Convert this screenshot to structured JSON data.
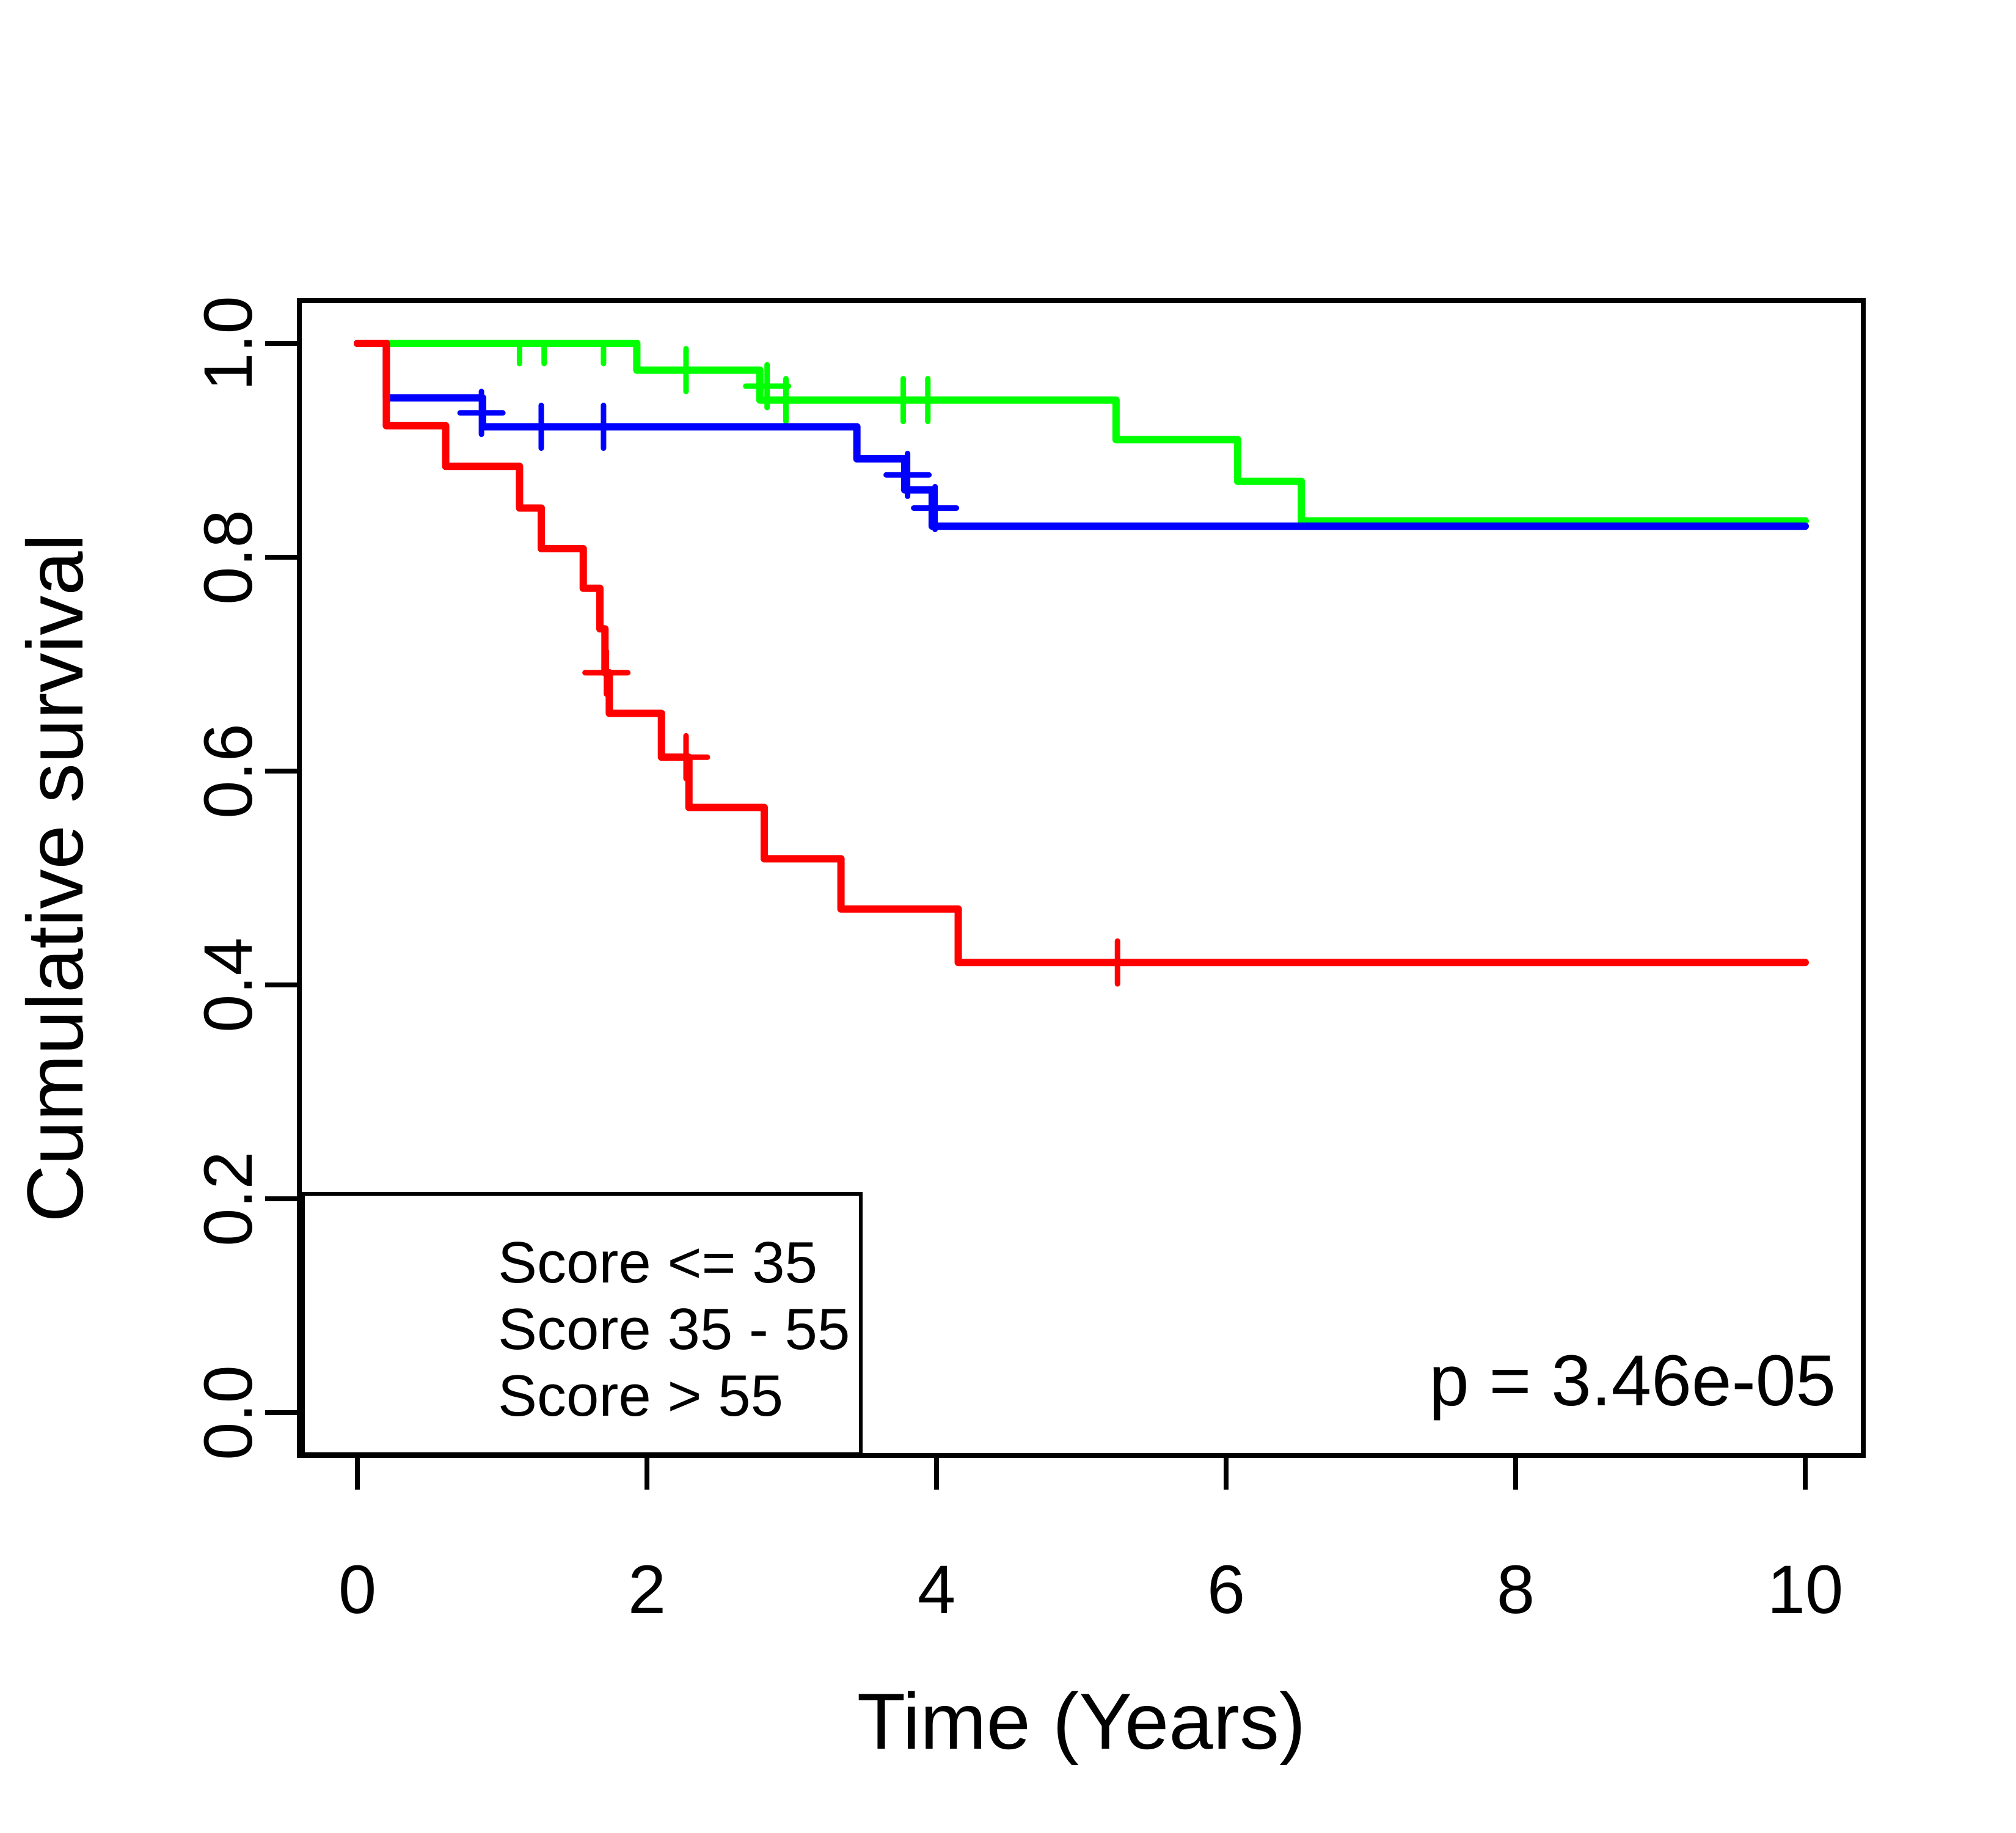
{
  "chart_data": {
    "type": "line",
    "subtype": "kaplan_meier_step_survival",
    "title": "",
    "xlabel": "Time (Years)",
    "ylabel": "Cumulative survival",
    "xlim": [
      0,
      10
    ],
    "ylim": [
      0.0,
      1.0
    ],
    "grid": false,
    "background_color": "#ffffff",
    "axis_color": "#000000",
    "xticks": [
      0,
      2,
      4,
      6,
      8,
      10
    ],
    "xtick_labels": [
      "0",
      "2",
      "4",
      "6",
      "8",
      "10"
    ],
    "yticks": [
      0.0,
      0.2,
      0.4,
      0.6,
      0.8,
      1.0
    ],
    "ytick_labels": [
      "0.0",
      "0.2",
      "0.4",
      "0.6",
      "0.8",
      "1.0"
    ],
    "p_value_text": "p = 3.46e-05",
    "legend": {
      "position": "bottom-left",
      "entries": [
        {
          "label": "Score <= 35",
          "color": "#00ff00"
        },
        {
          "label": "Score 35 - 55",
          "color": "#0000ff"
        },
        {
          "label": "Score > 55",
          "color": "#ff0000"
        }
      ]
    },
    "series": [
      {
        "name": "Score <= 35",
        "color": "#00ff00",
        "end_time": 10,
        "steps": [
          [
            0,
            1.0
          ],
          [
            1.93,
            0.975
          ],
          [
            2.78,
            0.947
          ],
          [
            5.24,
            0.91
          ],
          [
            6.08,
            0.871
          ],
          [
            6.52,
            0.834
          ]
        ],
        "censors_plus": [
          [
            2.27,
            0.975
          ],
          [
            2.83,
            0.96
          ],
          [
            2.96,
            0.947
          ],
          [
            3.77,
            0.947
          ],
          [
            3.94,
            0.947
          ]
        ],
        "censors_tick": [
          [
            1.12,
            1.0
          ],
          [
            1.29,
            1.0
          ],
          [
            1.7,
            1.0
          ]
        ]
      },
      {
        "name": "Score 35 - 55",
        "color": "#0000ff",
        "end_time": 10,
        "steps": [
          [
            0,
            1.0
          ],
          [
            0.2,
            0.949
          ],
          [
            0.865,
            0.922
          ],
          [
            3.45,
            0.892
          ],
          [
            3.78,
            0.863
          ],
          [
            3.97,
            0.829
          ]
        ],
        "censors_plus": [
          [
            0.857,
            0.935
          ],
          [
            1.27,
            0.922
          ],
          [
            1.7,
            0.922
          ],
          [
            3.8,
            0.877
          ],
          [
            3.99,
            0.846
          ]
        ],
        "censors_tick": []
      },
      {
        "name": "Score > 55",
        "color": "#ff0000",
        "end_time": 10,
        "steps": [
          [
            0,
            1.0
          ],
          [
            0.2,
            0.923
          ],
          [
            0.61,
            0.885
          ],
          [
            1.12,
            0.846
          ],
          [
            1.27,
            0.808
          ],
          [
            1.56,
            0.771
          ],
          [
            1.675,
            0.733
          ],
          [
            1.71,
            0.692
          ],
          [
            1.74,
            0.654
          ],
          [
            2.1,
            0.613
          ],
          [
            2.29,
            0.566
          ],
          [
            2.81,
            0.518
          ],
          [
            3.34,
            0.471
          ],
          [
            4.15,
            0.421
          ]
        ],
        "censors_plus": [
          [
            1.72,
            0.692
          ],
          [
            2.27,
            0.613
          ],
          [
            5.25,
            0.421
          ]
        ],
        "censors_tick": []
      }
    ]
  }
}
